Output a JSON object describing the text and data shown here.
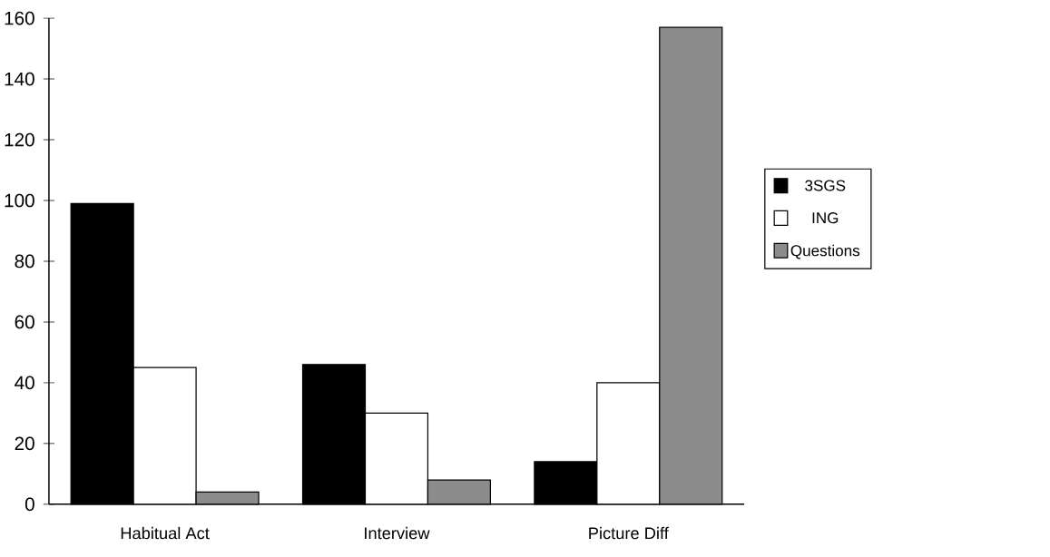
{
  "chart_data": {
    "type": "bar",
    "categories": [
      "Habitual Act",
      "Interview",
      "Picture Diff"
    ],
    "series": [
      {
        "name": "3SGS",
        "color": "#000000",
        "values": [
          99,
          46,
          14
        ]
      },
      {
        "name": "ING",
        "color": "#ffffff",
        "values": [
          45,
          30,
          40
        ]
      },
      {
        "name": "Questions",
        "color": "#8c8c8c",
        "values": [
          4,
          8,
          157
        ]
      }
    ],
    "ylim": [
      0,
      160
    ],
    "yticks": [
      0,
      20,
      40,
      60,
      80,
      100,
      120,
      140,
      160
    ],
    "grid": false,
    "legend": "right"
  }
}
